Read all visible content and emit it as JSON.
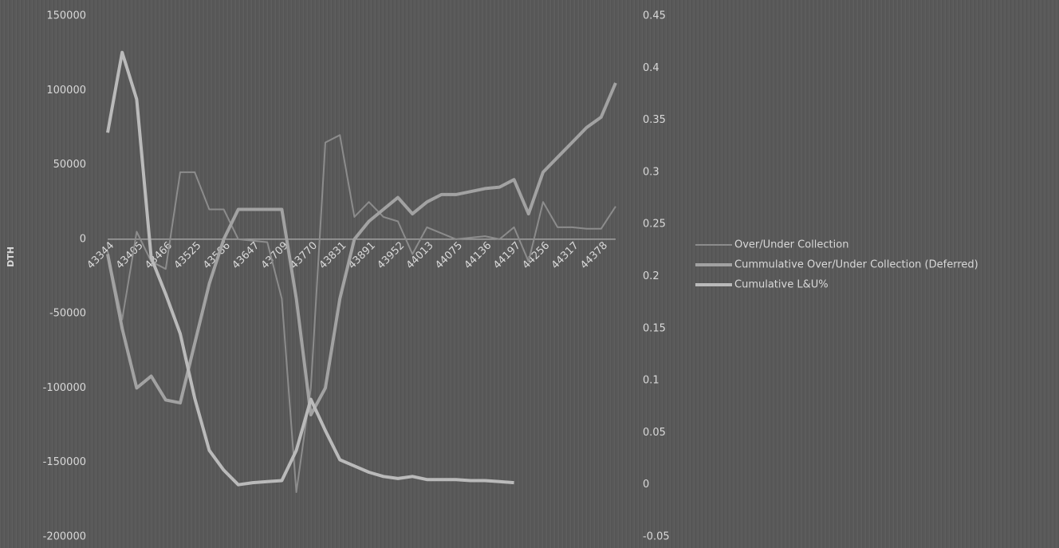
{
  "chart_data": {
    "type": "line",
    "y_label": "DTH",
    "categories": [
      "43344",
      null,
      "43405",
      null,
      "43466",
      null,
      "43525",
      null,
      "43586",
      null,
      "43647",
      null,
      "43709",
      null,
      "43770",
      null,
      "43831",
      null,
      "43891",
      null,
      "43952",
      null,
      "44013",
      null,
      "44075",
      null,
      "44136",
      null,
      "44197",
      null,
      "44256",
      null,
      "44317",
      null,
      "44378",
      null
    ],
    "series": [
      {
        "name": "Over/Under Collection",
        "color": "#8c8c8c",
        "width": 2,
        "axis": "y",
        "values": [
          -8000,
          -54000,
          5000,
          -15000,
          -20000,
          45000,
          45000,
          20000,
          20000,
          0,
          -1000,
          -2000,
          -40000,
          -170000,
          -100000,
          65000,
          70000,
          15000,
          25000,
          15000,
          12000,
          -10000,
          8000,
          4000,
          0,
          1000,
          2000,
          0,
          8000,
          -15000,
          25000,
          8000,
          8000,
          7000,
          7000,
          22000
        ]
      },
      {
        "name": "Cummulative Over/Under Collection (Deferred)",
        "color": "#a2a2a2",
        "width": 4,
        "axis": "y",
        "values": [
          -10000,
          -60000,
          -100000,
          -92000,
          -108000,
          -110000,
          -70000,
          -30000,
          0,
          20000,
          20000,
          20000,
          20000,
          -40000,
          -118000,
          -100000,
          -40000,
          0,
          12000,
          20000,
          28000,
          17000,
          25000,
          30000,
          30000,
          32000,
          34000,
          35000,
          40000,
          17000,
          45000,
          55000,
          65000,
          75000,
          82000,
          105000
        ]
      },
      {
        "name": "Cumulative L&U%",
        "color": "#bababa",
        "width": 4,
        "axis": "y2",
        "values": [
          0.338,
          0.415,
          0.37,
          0.218,
          0.183,
          0.145,
          0.083,
          0.033,
          0.014,
          0.0,
          0.002,
          0.003,
          0.004,
          0.033,
          0.082,
          0.052,
          0.024,
          0.018,
          0.012,
          0.008,
          0.006,
          0.008,
          0.005,
          0.005,
          0.005,
          0.004,
          0.004,
          0.003,
          0.002,
          null,
          null,
          null,
          null,
          null,
          null,
          null
        ]
      }
    ],
    "ylim": [
      -200000,
      150000
    ],
    "yticks": [
      -200000,
      -150000,
      -100000,
      -50000,
      0,
      50000,
      100000,
      150000
    ],
    "y2lim": [
      -0.05,
      0.45
    ],
    "y2ticks": [
      -0.05,
      0,
      0.05,
      0.1,
      0.15,
      0.2,
      0.25,
      0.3,
      0.35,
      0.4,
      0.45
    ],
    "grid": false,
    "legend": "right"
  }
}
